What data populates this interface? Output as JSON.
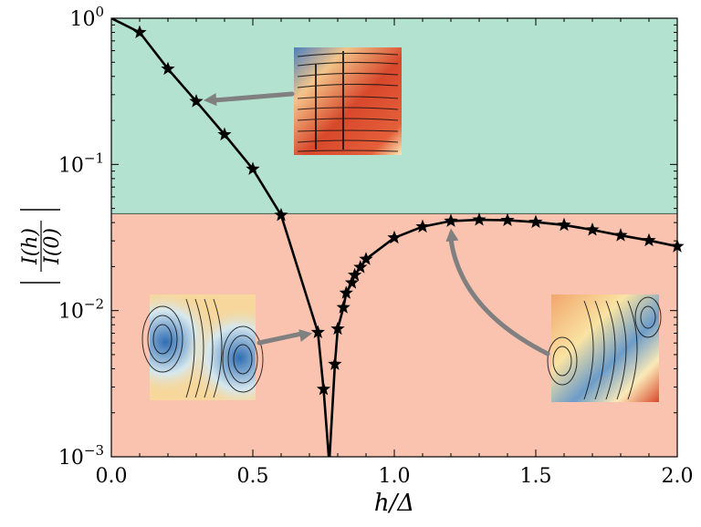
{
  "chart_data": {
    "type": "line",
    "xlabel": "h/Δ",
    "ylabel": "|I(h)/I(0)|",
    "ylabel_parts": {
      "numerator": "I(h)",
      "denominator": "I(0)"
    },
    "xlim": [
      0.0,
      2.0
    ],
    "ylim": [
      0.001,
      1.0
    ],
    "y_scale": "log",
    "x_ticks": [
      "0.0",
      "0.5",
      "1.0",
      "1.5",
      "2.0"
    ],
    "y_ticks": [
      {
        "value": 1.0,
        "base": "10",
        "exp": "0"
      },
      {
        "value": 0.1,
        "base": "10",
        "exp": "−1"
      },
      {
        "value": 0.01,
        "base": "10",
        "exp": "−2"
      },
      {
        "value": 0.001,
        "base": "10",
        "exp": "−3"
      }
    ],
    "grid": false,
    "regions": [
      {
        "y_from": 0.046,
        "y_to": 1.0,
        "color": "#b3e2d1"
      },
      {
        "y_from": 0.001,
        "y_to": 0.046,
        "color": "#f9c3b0"
      }
    ],
    "threshold": 0.046,
    "series": [
      {
        "color": "#000000",
        "marker": "star",
        "x": [
          0.0,
          0.1,
          0.2,
          0.3,
          0.4,
          0.5,
          0.6,
          0.73,
          0.75,
          0.77,
          0.79,
          0.8,
          0.82,
          0.83,
          0.85,
          0.86,
          0.88,
          0.9,
          1.0,
          1.1,
          1.2,
          1.3,
          1.4,
          1.5,
          1.6,
          1.7,
          1.8,
          1.9,
          2.0
        ],
        "y": [
          1.0,
          0.8,
          0.45,
          0.27,
          0.16,
          0.093,
          0.045,
          0.0071,
          0.0029,
          0.0009,
          0.0043,
          0.0075,
          0.0105,
          0.0132,
          0.0155,
          0.0175,
          0.0198,
          0.0225,
          0.0315,
          0.0375,
          0.041,
          0.0418,
          0.0415,
          0.0403,
          0.0385,
          0.0357,
          0.0327,
          0.0302,
          0.0275
        ],
        "marker_x": [
          0.1,
          0.2,
          0.3,
          0.4,
          0.5,
          0.6,
          0.73,
          0.75,
          0.79,
          0.8,
          0.82,
          0.83,
          0.85,
          0.86,
          0.88,
          0.9,
          1.0,
          1.1,
          1.2,
          1.3,
          1.4,
          1.5,
          1.6,
          1.7,
          1.8,
          1.9,
          2.0
        ]
      }
    ],
    "insets": [
      {
        "kind": "flow-field",
        "color_scheme": "red-dominant",
        "points_to": {
          "x": 0.3,
          "y": 0.27
        }
      },
      {
        "kind": "flow-field",
        "color_scheme": "two-vortex-blue-orange",
        "points_to": {
          "x": 0.73,
          "y": 0.0071
        }
      },
      {
        "kind": "flow-field",
        "color_scheme": "two-vortex-red-blue",
        "points_to": {
          "x": 1.2,
          "y": 0.041
        }
      }
    ],
    "arrow_color": "#808080"
  }
}
